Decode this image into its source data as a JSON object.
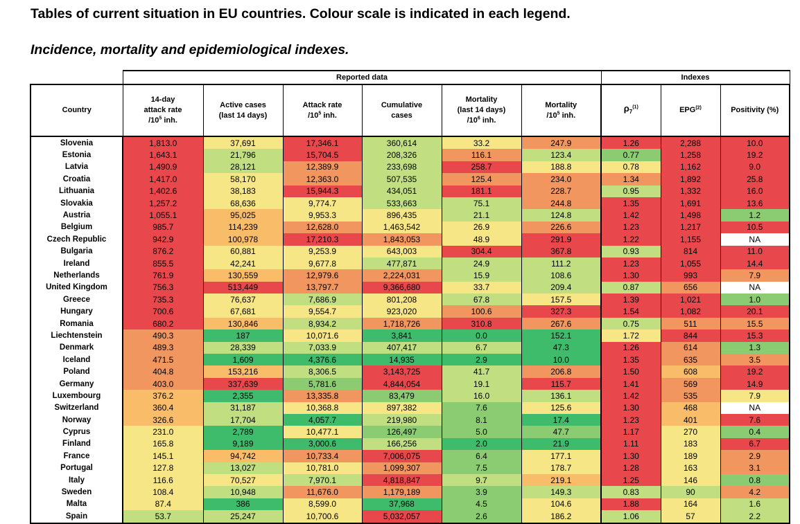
{
  "title_bold": "Tables of current situation in EU countries.",
  "title_rest": " Colour scale is indicated in each legend.",
  "subtitle": "Incidence, mortality and epidemiological indexes.",
  "groups": {
    "reported": "Reported data",
    "indexes": "Indexes"
  },
  "headers": {
    "country": "Country",
    "attack14_l1": "14-day",
    "attack14_l2": "attack rate",
    "attack14_l3": "/10",
    "attack14_sup": "5",
    "attack14_l4": " inh.",
    "active_l1": "Active cases",
    "active_l2": "(last 14 days)",
    "attack_l1": "Attack rate",
    "attack_l2": "/10",
    "attack_sup": "5",
    "attack_l3": " inh.",
    "cumulative_l1": "Cumulative",
    "cumulative_l2": "cases",
    "mort14_l1": "Mortality",
    "mort14_l2": "(last 14 days)",
    "mort14_l3": "/10",
    "mort14_sup": "6",
    "mort14_l4": " inh.",
    "mort_l1": "Mortality",
    "mort_l2": "/10",
    "mort_sup": "5",
    "mort_l3": " inh.",
    "rho": "ρ",
    "rho_sub": "7",
    "rho_sup": "(1)",
    "epg": "EPG",
    "epg_sup": "(2)",
    "positivity": "Positivity (%)"
  },
  "colors": {
    "r": "#e8474b",
    "o": "#f29660",
    "a": "#f9bd6a",
    "y": "#f6e686",
    "l": "#c1de81",
    "g": "#8bcc73",
    "d": "#3fbb6c",
    "w": "#ffffff"
  },
  "rows": [
    {
      "country": "Slovenia",
      "v": [
        "1,813.0",
        "37,691",
        "17,346.1",
        "360,614",
        "33.2",
        "247.9",
        "1.26",
        "2,288",
        "10.0"
      ],
      "c": "ryrlyorrr"
    },
    {
      "country": "Estonia",
      "v": [
        "1,643.1",
        "21,796",
        "15,704.5",
        "208,326",
        "116.1",
        "123.4",
        "0.77",
        "1,258",
        "19.2"
      ],
      "c": "rlrlolgrr"
    },
    {
      "country": "Latvia",
      "v": [
        "1,490.9",
        "28,121",
        "12,389.9",
        "233,698",
        "258.7",
        "188.8",
        "0.78",
        "1,162",
        "9.0"
      ],
      "c": "rlolryyrr"
    },
    {
      "country": "Croatia",
      "v": [
        "1,417.0",
        "58,170",
        "12,363.0",
        "507,535",
        "125.4",
        "234.0",
        "1.34",
        "1,892",
        "25.8"
      ],
      "c": "ryolooorr"
    },
    {
      "country": "Lithuania",
      "v": [
        "1,402.6",
        "38,183",
        "15,944.3",
        "434,051",
        "181.1",
        "228.7",
        "0.95",
        "1,332",
        "16.0"
      ],
      "c": "ryrlrolrr"
    },
    {
      "country": "Slovakia",
      "v": [
        "1,257.2",
        "68,636",
        "9,774.7",
        "533,663",
        "75.1",
        "244.8",
        "1.35",
        "1,691",
        "13.6"
      ],
      "c": "ryyllorrr"
    },
    {
      "country": "Austria",
      "v": [
        "1,055.1",
        "95,025",
        "9,953.3",
        "896,435",
        "21.1",
        "124.8",
        "1.42",
        "1,498",
        "1.2"
      ],
      "c": "rayyllrrg"
    },
    {
      "country": "Belgium",
      "v": [
        "985.7",
        "114,239",
        "12,628.0",
        "1,463,542",
        "26.9",
        "226.6",
        "1.23",
        "1,217",
        "10.5"
      ],
      "c": "raoyyorrr"
    },
    {
      "country": "Czech Republic",
      "v": [
        "942.9",
        "100,978",
        "17,210.3",
        "1,843,053",
        "48.9",
        "291.9",
        "1.22",
        "1,155",
        "NA"
      ],
      "c": "raroyrrrw"
    },
    {
      "country": "Bulgaria",
      "v": [
        "876.2",
        "60,881",
        "9,253.9",
        "643,003",
        "304.4",
        "367.8",
        "0.93",
        "814",
        "11.0"
      ],
      "c": "ryyyrrlrr"
    },
    {
      "country": "Ireland",
      "v": [
        "855.5",
        "42,241",
        "9,677.8",
        "477,871",
        "24.9",
        "111.2",
        "1.23",
        "1,055",
        "14.4"
      ],
      "c": "ryylllrrr"
    },
    {
      "country": "Netherlands",
      "v": [
        "761.9",
        "130,559",
        "12,979.6",
        "2,224,031",
        "15.9",
        "108.6",
        "1.30",
        "993",
        "7.9"
      ],
      "c": "raoollrro"
    },
    {
      "country": "United Kingdom",
      "v": [
        "756.3",
        "513,449",
        "13,797.7",
        "9,366,680",
        "33.7",
        "209.4",
        "0.87",
        "656",
        "NA"
      ],
      "c": "rrorylloW"
    },
    {
      "country": "Greece",
      "v": [
        "735.3",
        "76,637",
        "7,686.9",
        "801,208",
        "67.8",
        "157.5",
        "1.39",
        "1,021",
        "1.0"
      ],
      "c": "rylylyrrg"
    },
    {
      "country": "Hungary",
      "v": [
        "700.6",
        "67,681",
        "9,554.7",
        "923,020",
        "100.6",
        "327.3",
        "1.54",
        "1,082",
        "20.1"
      ],
      "c": "ryyyorrrr"
    },
    {
      "country": "Romania",
      "v": [
        "680.2",
        "130,846",
        "8,934.2",
        "1,718,726",
        "310.8",
        "267.6",
        "0.75",
        "511",
        "15.5"
      ],
      "c": "raloroloo"
    },
    {
      "country": "Liechtenstein",
      "v": [
        "490.3",
        "187",
        "10,071.6",
        "3,841",
        "0.0",
        "152.1",
        "1.72",
        "844",
        "15.3"
      ],
      "c": "odydddyrr"
    },
    {
      "country": "Denmark",
      "v": [
        "489.3",
        "28,339",
        "7,033.9",
        "407,417",
        "6.7",
        "47.3",
        "1.26",
        "614",
        "1.3"
      ],
      "c": "olllldrog"
    },
    {
      "country": "Iceland",
      "v": [
        "471.5",
        "1,609",
        "4,376.6",
        "14,935",
        "2.9",
        "10.0",
        "1.35",
        "635",
        "3.5"
      ],
      "c": "oddddnroo"
    },
    {
      "country": "Poland",
      "v": [
        "404.8",
        "153,216",
        "8,306.5",
        "3,143,725",
        "41.7",
        "206.8",
        "1.50",
        "608",
        "19.2"
      ],
      "c": "oalrlorar"
    },
    {
      "country": "Germany",
      "v": [
        "403.0",
        "337,639",
        "5,781.6",
        "4,844,054",
        "19.1",
        "115.7",
        "1.41",
        "569",
        "14.9"
      ],
      "c": "orgrlrror"
    },
    {
      "country": "Luxembourg",
      "v": [
        "376.2",
        "2,355",
        "13,335.8",
        "83,479",
        "16.0",
        "136.1",
        "1.42",
        "535",
        "7.9"
      ],
      "c": "adogllroy"
    },
    {
      "country": "Switzerland",
      "v": [
        "360.4",
        "31,187",
        "10,368.8",
        "897,382",
        "7.6",
        "125.6",
        "1.30",
        "468",
        "NA"
      ],
      "c": "alyygyraw"
    },
    {
      "country": "Norway",
      "v": [
        "326.6",
        "17,704",
        "4,057.7",
        "219,980",
        "8.1",
        "17.4",
        "1.23",
        "401",
        "7.6"
      ],
      "c": "aldlgdrar"
    },
    {
      "country": "Cyprus",
      "v": [
        "231.0",
        "2,789",
        "10,477.1",
        "126,497",
        "5.0",
        "47.7",
        "1.17",
        "270",
        "0.4"
      ],
      "c": "ydygggryg"
    },
    {
      "country": "Finland",
      "v": [
        "165.8",
        "9,189",
        "3,000.6",
        "166,256",
        "2.0",
        "21.9",
        "1.11",
        "183",
        "6.7"
      ],
      "c": "yddlddryr"
    },
    {
      "country": "France",
      "v": [
        "145.1",
        "94,742",
        "10,733.4",
        "7,006,075",
        "6.4",
        "177.1",
        "1.30",
        "189",
        "2.9"
      ],
      "c": "yaorgyryo"
    },
    {
      "country": "Portugal",
      "v": [
        "127.8",
        "13,027",
        "10,781.0",
        "1,099,307",
        "7.5",
        "178.7",
        "1.28",
        "163",
        "3.1"
      ],
      "c": "ylyogyryo"
    },
    {
      "country": "Italy",
      "v": [
        "116.6",
        "70,527",
        "7,970.1",
        "4,818,847",
        "9.7",
        "219.1",
        "1.25",
        "146",
        "0.8"
      ],
      "c": "yylrlaryg"
    },
    {
      "country": "Sweden",
      "v": [
        "108.4",
        "10,948",
        "11,676.0",
        "1,179,189",
        "3.9",
        "149.3",
        "0.83",
        "90",
        "4.2"
      ],
      "c": "ylooglllo"
    },
    {
      "country": "Malta",
      "v": [
        "87.4",
        "386",
        "8,599.0",
        "37,968",
        "4.5",
        "104.6",
        "1.88",
        "164",
        "1.6"
      ],
      "c": "ydydgyryl"
    },
    {
      "country": "Spain",
      "v": [
        "53.7",
        "25,247",
        "10,700.6",
        "5,032,057",
        "2.6",
        "186.2",
        "1.06",
        "57",
        "2.2"
      ],
      "c": "llyrgylyl"
    }
  ]
}
